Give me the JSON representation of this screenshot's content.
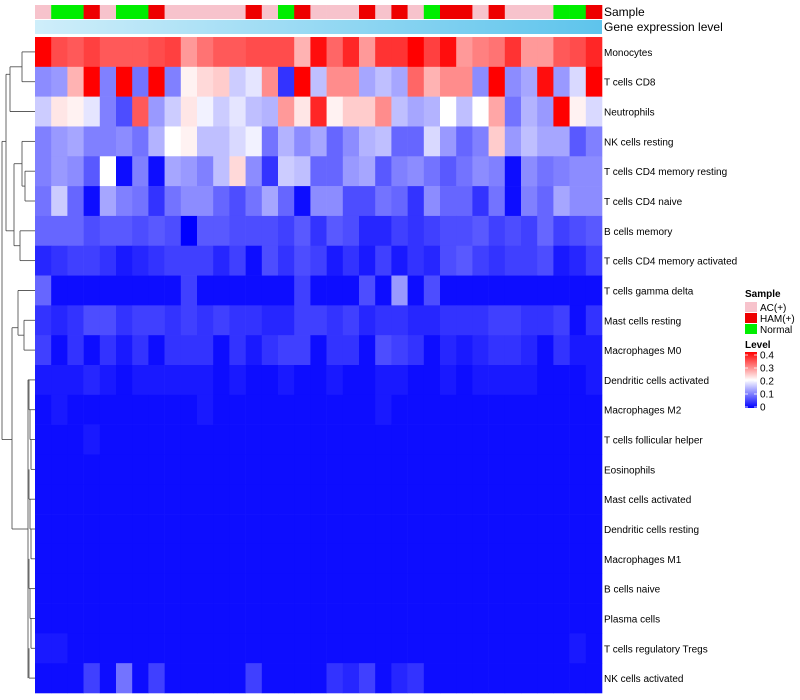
{
  "chart_data": {
    "type": "heatmap",
    "annotation_labels": {
      "sample": "Sample",
      "gene_expression": "Gene expression level"
    },
    "samples": [
      "AC(+)",
      "Normal",
      "Normal",
      "HAM(+)",
      "AC(+)",
      "Normal",
      "Normal",
      "HAM(+)",
      "AC(+)",
      "AC(+)",
      "AC(+)",
      "AC(+)",
      "AC(+)",
      "HAM(+)",
      "AC(+)",
      "Normal",
      "HAM(+)",
      "AC(+)",
      "AC(+)",
      "AC(+)",
      "HAM(+)",
      "AC(+)",
      "HAM(+)",
      "AC(+)",
      "Normal",
      "HAM(+)",
      "HAM(+)",
      "AC(+)",
      "HAM(+)",
      "AC(+)",
      "AC(+)",
      "AC(+)",
      "Normal",
      "Normal",
      "HAM(+)"
    ],
    "rows": [
      "Monocytes",
      "T cells CD8",
      "Neutrophils",
      "NK cells resting",
      "T cells CD4 memory resting",
      "T cells CD4 naive",
      "B cells memory",
      "T cells CD4 memory activated",
      "T cells gamma delta",
      "Mast cells resting",
      "Macrophages M0",
      "Dendritic cells activated",
      "Macrophages M2",
      "T cells follicular helper",
      "Eosinophils",
      "Mast cells activated",
      "Dendritic cells resting",
      "Macrophages M1",
      "B cells naive",
      "Plasma cells",
      "T cells regulatory  Tregs",
      "NK cells activated"
    ],
    "values": [
      [
        0.4,
        0.34,
        0.33,
        0.35,
        0.33,
        0.33,
        0.33,
        0.34,
        0.35,
        0.28,
        0.31,
        0.33,
        0.33,
        0.34,
        0.34,
        0.34,
        0.26,
        0.39,
        0.32,
        0.37,
        0.28,
        0.36,
        0.36,
        0.4,
        0.35,
        0.39,
        0.28,
        0.3,
        0.31,
        0.36,
        0.28,
        0.28,
        0.33,
        0.34,
        0.37
      ],
      [
        0.11,
        0.12,
        0.26,
        0.4,
        0.1,
        0.4,
        0.09,
        0.4,
        0.1,
        0.21,
        0.23,
        0.24,
        0.16,
        0.18,
        0.29,
        0.04,
        0.4,
        0.15,
        0.29,
        0.29,
        0.13,
        0.15,
        0.13,
        0.32,
        0.26,
        0.29,
        0.29,
        0.11,
        0.4,
        0.11,
        0.13,
        0.39,
        0.12,
        0.17,
        0.4
      ],
      [
        0.16,
        0.22,
        0.21,
        0.18,
        0.1,
        0.06,
        0.33,
        0.12,
        0.16,
        0.22,
        0.19,
        0.16,
        0.18,
        0.15,
        0.14,
        0.28,
        0.22,
        0.37,
        0.21,
        0.24,
        0.24,
        0.29,
        0.15,
        0.13,
        0.14,
        0.2,
        0.15,
        0.2,
        0.27,
        0.09,
        0.14,
        0.12,
        0.4,
        0.21,
        0.17
      ],
      [
        0.1,
        0.12,
        0.13,
        0.1,
        0.1,
        0.11,
        0.09,
        0.14,
        0.2,
        0.21,
        0.15,
        0.15,
        0.17,
        0.19,
        0.09,
        0.14,
        0.11,
        0.13,
        0.08,
        0.11,
        0.14,
        0.15,
        0.08,
        0.08,
        0.17,
        0.12,
        0.08,
        0.1,
        0.24,
        0.12,
        0.15,
        0.13,
        0.13,
        0.07,
        0.1
      ],
      [
        0.1,
        0.12,
        0.11,
        0.07,
        0.2,
        0.01,
        0.1,
        0.01,
        0.13,
        0.12,
        0.1,
        0.15,
        0.23,
        0.11,
        0.04,
        0.16,
        0.15,
        0.08,
        0.08,
        0.12,
        0.13,
        0.07,
        0.1,
        0.11,
        0.09,
        0.07,
        0.09,
        0.11,
        0.1,
        0.01,
        0.11,
        0.09,
        0.1,
        0.11,
        0.11
      ],
      [
        0.09,
        0.16,
        0.08,
        0.01,
        0.13,
        0.1,
        0.09,
        0.04,
        0.09,
        0.11,
        0.11,
        0.08,
        0.06,
        0.09,
        0.13,
        0.08,
        0.01,
        0.11,
        0.11,
        0.06,
        0.06,
        0.09,
        0.08,
        0.04,
        0.11,
        0.08,
        0.08,
        0.04,
        0.09,
        0.01,
        0.1,
        0.08,
        0.13,
        0.11,
        0.11
      ],
      [
        0.08,
        0.08,
        0.08,
        0.06,
        0.07,
        0.07,
        0.06,
        0.07,
        0.06,
        0.0,
        0.07,
        0.07,
        0.06,
        0.06,
        0.06,
        0.05,
        0.07,
        0.04,
        0.07,
        0.06,
        0.03,
        0.03,
        0.05,
        0.04,
        0.05,
        0.06,
        0.06,
        0.07,
        0.05,
        0.06,
        0.05,
        0.08,
        0.05,
        0.06,
        0.07
      ],
      [
        0.03,
        0.04,
        0.05,
        0.05,
        0.04,
        0.02,
        0.03,
        0.04,
        0.05,
        0.05,
        0.05,
        0.03,
        0.05,
        0.01,
        0.06,
        0.04,
        0.06,
        0.05,
        0.02,
        0.04,
        0.02,
        0.05,
        0.02,
        0.04,
        0.03,
        0.06,
        0.07,
        0.05,
        0.04,
        0.05,
        0.05,
        0.06,
        0.02,
        0.03,
        0.05
      ],
      [
        0.08,
        0.01,
        0.01,
        0.01,
        0.01,
        0.01,
        0.01,
        0.01,
        0.01,
        0.05,
        0.01,
        0.01,
        0.01,
        0.01,
        0.01,
        0.01,
        0.05,
        0.01,
        0.01,
        0.01,
        0.06,
        0.01,
        0.12,
        0.01,
        0.06,
        0.01,
        0.01,
        0.01,
        0.01,
        0.01,
        0.01,
        0.01,
        0.01,
        0.01,
        0.01
      ],
      [
        0.04,
        0.03,
        0.04,
        0.06,
        0.06,
        0.04,
        0.05,
        0.05,
        0.04,
        0.05,
        0.04,
        0.05,
        0.04,
        0.04,
        0.03,
        0.03,
        0.05,
        0.05,
        0.04,
        0.05,
        0.03,
        0.04,
        0.04,
        0.03,
        0.03,
        0.04,
        0.04,
        0.04,
        0.05,
        0.05,
        0.04,
        0.04,
        0.05,
        0.01,
        0.04
      ],
      [
        0.05,
        0.01,
        0.04,
        0.01,
        0.04,
        0.02,
        0.04,
        0.01,
        0.04,
        0.04,
        0.04,
        0.01,
        0.04,
        0.02,
        0.04,
        0.05,
        0.05,
        0.01,
        0.04,
        0.04,
        0.01,
        0.06,
        0.05,
        0.04,
        0.01,
        0.03,
        0.02,
        0.03,
        0.04,
        0.04,
        0.03,
        0.01,
        0.04,
        0.02,
        0.02
      ],
      [
        0.02,
        0.02,
        0.02,
        0.03,
        0.02,
        0.01,
        0.02,
        0.02,
        0.02,
        0.02,
        0.02,
        0.01,
        0.02,
        0.01,
        0.01,
        0.02,
        0.01,
        0.01,
        0.02,
        0.01,
        0.01,
        0.02,
        0.02,
        0.01,
        0.01,
        0.02,
        0.01,
        0.02,
        0.02,
        0.02,
        0.02,
        0.01,
        0.01,
        0.01,
        0.02
      ],
      [
        0.01,
        0.02,
        0.01,
        0.01,
        0.01,
        0.01,
        0.01,
        0.01,
        0.01,
        0.01,
        0.02,
        0.01,
        0.01,
        0.01,
        0.01,
        0.01,
        0.01,
        0.01,
        0.01,
        0.01,
        0.01,
        0.02,
        0.01,
        0.01,
        0.01,
        0.01,
        0.01,
        0.01,
        0.01,
        0.01,
        0.01,
        0.01,
        0.01,
        0.01,
        0.01
      ],
      [
        0.01,
        0.01,
        0.01,
        0.02,
        0.01,
        0.01,
        0.01,
        0.01,
        0.01,
        0.01,
        0.01,
        0.01,
        0.01,
        0.01,
        0.01,
        0.01,
        0.01,
        0.01,
        0.01,
        0.01,
        0.01,
        0.01,
        0.01,
        0.01,
        0.01,
        0.01,
        0.01,
        0.01,
        0.01,
        0.01,
        0.01,
        0.01,
        0.01,
        0.01,
        0.01
      ],
      [
        0.01,
        0.01,
        0.01,
        0.01,
        0.01,
        0.01,
        0.01,
        0.01,
        0.01,
        0.01,
        0.01,
        0.01,
        0.01,
        0.01,
        0.01,
        0.01,
        0.01,
        0.01,
        0.01,
        0.01,
        0.01,
        0.01,
        0.01,
        0.01,
        0.01,
        0.01,
        0.01,
        0.01,
        0.01,
        0.01,
        0.01,
        0.01,
        0.01,
        0.01,
        0.01
      ],
      [
        0.01,
        0.01,
        0.01,
        0.01,
        0.01,
        0.01,
        0.01,
        0.01,
        0.01,
        0.01,
        0.01,
        0.01,
        0.01,
        0.01,
        0.01,
        0.01,
        0.01,
        0.01,
        0.01,
        0.01,
        0.01,
        0.01,
        0.01,
        0.01,
        0.01,
        0.01,
        0.01,
        0.01,
        0.01,
        0.01,
        0.01,
        0.01,
        0.01,
        0.01,
        0.01
      ],
      [
        0.01,
        0.01,
        0.01,
        0.01,
        0.01,
        0.01,
        0.01,
        0.01,
        0.01,
        0.01,
        0.01,
        0.01,
        0.01,
        0.01,
        0.01,
        0.01,
        0.01,
        0.01,
        0.01,
        0.01,
        0.01,
        0.01,
        0.01,
        0.01,
        0.01,
        0.01,
        0.01,
        0.01,
        0.01,
        0.01,
        0.01,
        0.01,
        0.01,
        0.01,
        0.01
      ],
      [
        0.01,
        0.01,
        0.01,
        0.01,
        0.01,
        0.01,
        0.01,
        0.01,
        0.01,
        0.01,
        0.01,
        0.01,
        0.01,
        0.01,
        0.01,
        0.01,
        0.01,
        0.01,
        0.01,
        0.01,
        0.01,
        0.01,
        0.01,
        0.01,
        0.01,
        0.01,
        0.01,
        0.01,
        0.01,
        0.01,
        0.01,
        0.01,
        0.01,
        0.01,
        0.01
      ],
      [
        0.01,
        0.01,
        0.01,
        0.01,
        0.01,
        0.01,
        0.01,
        0.01,
        0.01,
        0.01,
        0.01,
        0.01,
        0.01,
        0.01,
        0.01,
        0.01,
        0.01,
        0.01,
        0.01,
        0.01,
        0.01,
        0.01,
        0.01,
        0.01,
        0.01,
        0.01,
        0.01,
        0.01,
        0.01,
        0.01,
        0.01,
        0.01,
        0.01,
        0.01,
        0.01
      ],
      [
        0.01,
        0.01,
        0.01,
        0.01,
        0.01,
        0.01,
        0.01,
        0.01,
        0.01,
        0.01,
        0.01,
        0.01,
        0.01,
        0.01,
        0.01,
        0.01,
        0.01,
        0.01,
        0.01,
        0.01,
        0.01,
        0.01,
        0.01,
        0.01,
        0.01,
        0.01,
        0.01,
        0.01,
        0.01,
        0.01,
        0.01,
        0.01,
        0.01,
        0.01,
        0.01
      ],
      [
        0.02,
        0.02,
        0.01,
        0.01,
        0.01,
        0.01,
        0.01,
        0.01,
        0.01,
        0.01,
        0.01,
        0.01,
        0.01,
        0.01,
        0.01,
        0.01,
        0.01,
        0.01,
        0.01,
        0.01,
        0.01,
        0.01,
        0.01,
        0.01,
        0.01,
        0.01,
        0.01,
        0.01,
        0.01,
        0.01,
        0.01,
        0.01,
        0.01,
        0.02,
        0.01
      ],
      [
        0.01,
        0.01,
        0.01,
        0.05,
        0.01,
        0.09,
        0.01,
        0.05,
        0.01,
        0.01,
        0.01,
        0.01,
        0.01,
        0.05,
        0.01,
        0.01,
        0.01,
        0.01,
        0.04,
        0.03,
        0.05,
        0.01,
        0.03,
        0.04,
        0.01,
        0.01,
        0.01,
        0.01,
        0.01,
        0.01,
        0.01,
        0.01,
        0.01,
        0.01,
        0.01
      ]
    ],
    "color_scale": {
      "stops": [
        {
          "value": 0,
          "color": "#0000ff"
        },
        {
          "value": 0.2,
          "color": "#ffffff"
        },
        {
          "value": 0.4,
          "color": "#ff0000"
        }
      ]
    },
    "legend": {
      "position": "right",
      "sample_title": "Sample",
      "sample_entries": [
        {
          "label": "AC(+)",
          "color": "#f7c3cc"
        },
        {
          "label": "HAM(+)",
          "color": "#ee0000"
        },
        {
          "label": "Normal",
          "color": "#00ee00"
        }
      ],
      "level_title": "Level",
      "level_ticks": [
        0.4,
        0.3,
        0.2,
        0.1,
        0
      ]
    },
    "gene_expression_color": "#87ceeb",
    "dendrogram": "rows"
  }
}
